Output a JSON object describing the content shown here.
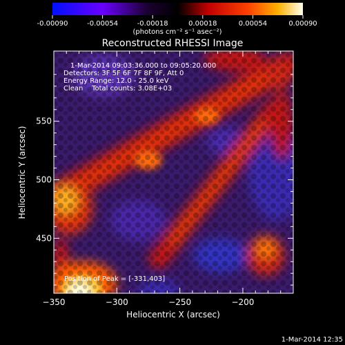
{
  "chart_data": {
    "type": "heatmap",
    "title": "Reconstructed RHESSI Image",
    "xlabel": "Heliocentric X (arcsec)",
    "ylabel": "Heliocentric Y (arcsec)",
    "xlim": [
      -350,
      -160
    ],
    "ylim": [
      403,
      610
    ],
    "x_ticks": [
      -350,
      -300,
      -250,
      -200
    ],
    "x_tick_labels": [
      "−350",
      "−300",
      "−250",
      "−200"
    ],
    "y_ticks": [
      450,
      500,
      550
    ],
    "y_tick_labels": [
      "450",
      "500",
      "550"
    ],
    "annotations": [
      "1-Mar-2014 09:03:36.000 to 09:05:20.000",
      "Detectors: 3F 5F 6F 7F 8F 9F, Att 0",
      "Energy Range: 12.0 - 25.0 keV",
      "Clean    Total counts: 3.08E+03"
    ],
    "peak_label": "Position of Peak = [-331,403]",
    "colorbar": {
      "range": [
        -0.0009,
        0.0009
      ],
      "tick_labels": [
        "-0.00090",
        "-0.00054",
        "-0.00018",
        "0.00018",
        "0.00054",
        "0.00090"
      ],
      "units": "(photons cm⁻² s⁻¹ asec⁻²)",
      "colors": [
        "#0000ff",
        "#7a00ff",
        "#3a2060",
        "#000000",
        "#d81010",
        "#ff5a00",
        "#ffb000",
        "#fff8c8"
      ]
    }
  },
  "footer": {
    "timestamp": "1-Mar-2014 12:35"
  }
}
